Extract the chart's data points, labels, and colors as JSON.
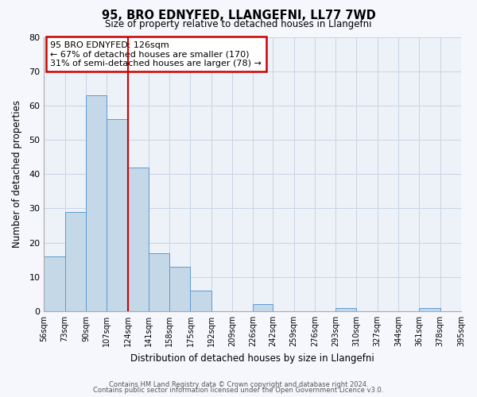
{
  "title": "95, BRO EDNYFED, LLANGEFNI, LL77 7WD",
  "subtitle": "Size of property relative to detached houses in Llangefni",
  "xlabel": "Distribution of detached houses by size in Llangefni",
  "ylabel": "Number of detached properties",
  "bar_left_edges": [
    56,
    73,
    90,
    107,
    124,
    141,
    158,
    175,
    192,
    209,
    226,
    242,
    259,
    276,
    293,
    310,
    327,
    344,
    361,
    378
  ],
  "bar_right_edges": [
    73,
    90,
    107,
    124,
    141,
    158,
    175,
    192,
    209,
    226,
    242,
    259,
    276,
    293,
    310,
    327,
    344,
    361,
    378,
    395
  ],
  "bar_heights": [
    16,
    29,
    63,
    56,
    42,
    17,
    13,
    6,
    0,
    0,
    2,
    0,
    0,
    0,
    1,
    0,
    0,
    0,
    1,
    0
  ],
  "x_tick_labels": [
    "56sqm",
    "73sqm",
    "90sqm",
    "107sqm",
    "124sqm",
    "141sqm",
    "158sqm",
    "175sqm",
    "192sqm",
    "209sqm",
    "226sqm",
    "242sqm",
    "259sqm",
    "276sqm",
    "293sqm",
    "310sqm",
    "327sqm",
    "344sqm",
    "361sqm",
    "378sqm",
    "395sqm"
  ],
  "bar_color": "#c5d8e8",
  "bar_edge_color": "#5b9bd5",
  "grid_color": "#c8d4e4",
  "bg_color": "#edf1f8",
  "fig_bg_color": "#f5f7fc",
  "ref_line_x": 124,
  "ref_line_color": "#cc0000",
  "annotation_title": "95 BRO EDNYFED: 126sqm",
  "annotation_line1": "← 67% of detached houses are smaller (170)",
  "annotation_line2": "31% of semi-detached houses are larger (78) →",
  "annotation_box_color": "#cc0000",
  "ylim": [
    0,
    80
  ],
  "yticks": [
    0,
    10,
    20,
    30,
    40,
    50,
    60,
    70,
    80
  ],
  "footer_line1": "Contains HM Land Registry data © Crown copyright and database right 2024.",
  "footer_line2": "Contains public sector information licensed under the Open Government Licence v3.0."
}
